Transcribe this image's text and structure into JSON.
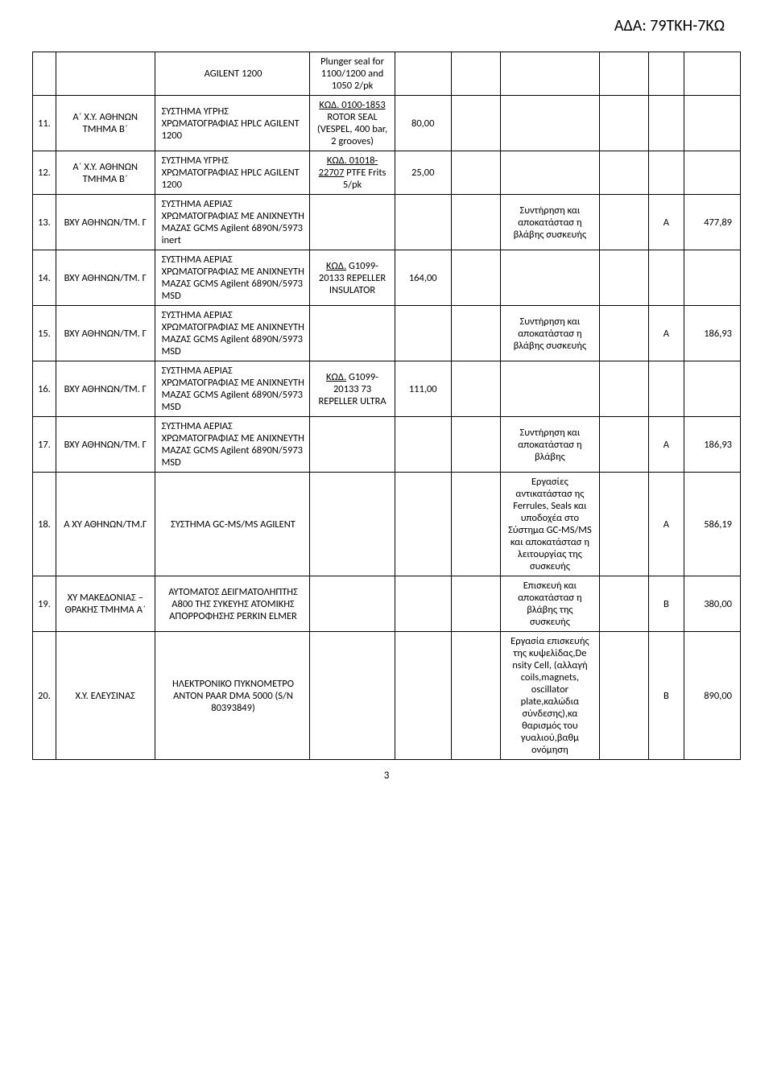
{
  "header": {
    "code": "ΑΔΑ: 79ΤΚΗ-7ΚΩ"
  },
  "page_number": "3",
  "rows": [
    {
      "num": "",
      "loc": "",
      "sys": "AGILENT 1200",
      "part": "Plunger seal for 1100/1200 and 1050 2/pk",
      "price": "",
      "desc": "",
      "cat": "",
      "amt": ""
    },
    {
      "num": "11.",
      "loc": "Α΄ Χ.Υ. ΑΘΗΝΩΝ ΤΜΗΜΑ Β΄",
      "sys": "ΣΥΣΤΗΜΑ ΥΓΡΗΣ ΧΡΩΜΑΤΟΓΡΑΦΙΑΣ HPLC AGILENT 1200",
      "part_prefix": "ΚΩΔ.   0100-1853",
      "part_rest": "ROTOR SEAL (VESPEL, 400 bar, 2 grooves)",
      "price": "80,00",
      "desc": "",
      "cat": "",
      "amt": ""
    },
    {
      "num": "12.",
      "loc": "Α΄ Χ.Υ. ΑΘΗΝΩΝ ΤΜΗΜΑ Β΄",
      "sys": "ΣΥΣΤΗΜΑ ΥΓΡΗΣ ΧΡΩΜΑΤΟΓΡΑΦΙΑΣ HPLC AGILENT 1200",
      "part_prefix": "ΚΩΔ. 01018-22707",
      "part_rest": " PTFE Frits 5/pk",
      "price": "25,00",
      "desc": "",
      "cat": "",
      "amt": ""
    },
    {
      "num": "13.",
      "loc": "BXY ΑΘΗΝΩΝ/ΤΜ. Γ",
      "sys": "ΣΥΣΤΗΜΑ ΑΕΡΙΑΣ ΧΡΩΜΑΤΟΓΡΑΦΙΑΣ ΜΕ ΑΝΙΧΝΕΥΤΗ ΜΑΖΑΣ GCMS Agilent 6890N/5973 inert",
      "part": "",
      "price": "",
      "desc": "Συντήρηση και αποκατάστασ η βλάβης συσκευής",
      "cat": "Α",
      "amt": "477,89"
    },
    {
      "num": "14.",
      "loc": "BXY ΑΘΗΝΩΝ/ΤΜ. Γ",
      "sys": "ΣΥΣΤΗΜΑ ΑΕΡΙΑΣ ΧΡΩΜΑΤΟΓΡΑΦΙΑΣ ΜΕ ΑΝΙΧΝΕΥΤΗ ΜΑΖΑΣ GCMS Agilent 6890N/5973 MSD",
      "part_prefix": "ΚΩΔ.",
      "part_rest": " G1099-20133 REPELLER INSULATOR",
      "price": "164,00",
      "desc": "",
      "cat": "",
      "amt": ""
    },
    {
      "num": "15.",
      "loc": "BXY ΑΘΗΝΩΝ/ΤΜ. Γ",
      "sys": "ΣΥΣΤΗΜΑ ΑΕΡΙΑΣ ΧΡΩΜΑΤΟΓΡΑΦΙΑΣ ΜΕ ΑΝΙΧΝΕΥΤΗ ΜΑΖΑΣ GCMS Agilent 6890N/5973 MSD",
      "part": "",
      "price": "",
      "desc": "Συντήρηση και αποκατάστασ η βλάβης συσκευής",
      "cat": "Α",
      "amt": "186,93"
    },
    {
      "num": "16.",
      "loc": "BXY ΑΘΗΝΩΝ/ΤΜ. Γ",
      "sys": "ΣΥΣΤΗΜΑ ΑΕΡΙΑΣ ΧΡΩΜΑΤΟΓΡΑΦΙΑΣ ΜΕ ΑΝΙΧΝΕΥΤΗ ΜΑΖΑΣ GCMS Agilent 6890N/5973 MSD",
      "part_prefix": "ΚΩΔ.",
      "part_rest": " G1099-20133 73 REPELLER ULTRA",
      "price": "111,00",
      "desc": "",
      "cat": "",
      "amt": ""
    },
    {
      "num": "17.",
      "loc": "BXY ΑΘΗΝΩΝ/ΤΜ. Γ",
      "sys": "ΣΥΣΤΗΜΑ ΑΕΡΙΑΣ ΧΡΩΜΑΤΟΓΡΑΦΙΑΣ ΜΕ ΑΝΙΧΝΕΥΤΗ ΜΑΖΑΣ GCMS Agilent 6890N/5973 MSD",
      "part": "",
      "price": "",
      "desc": "Συντήρηση και αποκατάστασ η βλάβης",
      "cat": "Α",
      "amt": "186,93"
    },
    {
      "num": "18.",
      "loc": "Α XY ΑΘΗΝΩΝ/ΤΜ.Γ",
      "sys": "ΣΥΣΤΗΜΑ GC-MS/MS AGILENT",
      "part": "",
      "price": "",
      "desc": "Εργασίες αντικατάστασ ης Ferrules, Seals και υποδοχέα στο Σύστημα GC-MS/MS και αποκατάστασ η λειτουργίας της συσκευής",
      "cat": "Α",
      "amt": "586,19"
    },
    {
      "num": "19.",
      "loc": "XY ΜΑΚΕΔΟΝΙΑΣ – ΘΡΑΚΗΣ ΤΜΗΜΑ Α΄",
      "sys": "ΑΥΤΟΜΑΤΟΣ ΔΕΙΓΜΑΤΟΛΗΠΤΗΣ Α800 ΤΗΣ ΣΥΚΕΥΗΣ ΑΤΟΜΙΚΗΣ ΑΠΟΡΡΟΦΗΣΗΣ PERKIN ELMER",
      "part": "",
      "price": "",
      "desc": "Επισκευή και αποκατάστασ η βλάβης της συσκευής",
      "cat": "Β",
      "amt": "380,00"
    },
    {
      "num": "20.",
      "loc": "Χ.Υ. ΕΛΕΥΣΙΝΑΣ",
      "sys": "ΗΛΕΚΤΡΟΝΙΚΟ ΠΥΚΝΟΜΕΤΡΟ ANTON PAAR DMA 5000 (S/N 80393849)",
      "part": "",
      "price": "",
      "desc": "Εργασία επισκευής της κυψελίδας,De nsity Cell, (αλλαγή coils,magnets, oscillator plate,καλώδια σύνδεσης),κα θαρισμός του γυαλιού,βαθμ ονόμηση",
      "cat": "Β",
      "amt": "890,00"
    }
  ]
}
